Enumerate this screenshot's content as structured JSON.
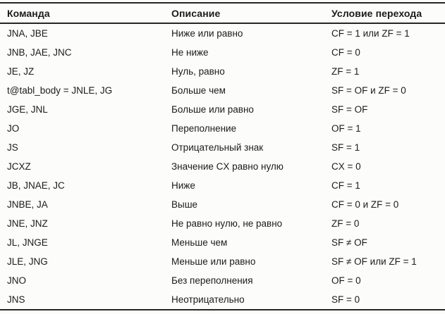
{
  "colors": {
    "background": "#fcfcfb",
    "text": "#1b1b1b",
    "rule": "#262626"
  },
  "table": {
    "columns": [
      {
        "key": "command",
        "label": "Команда"
      },
      {
        "key": "description",
        "label": "Описание"
      },
      {
        "key": "condition",
        "label": "Условие перехода"
      }
    ],
    "rows": [
      {
        "command": "JNA, JBE",
        "description": "Ниже или равно",
        "condition": "CF = 1 или ZF = 1"
      },
      {
        "command": "JNB, JAE, JNC",
        "description": "Не ниже",
        "condition": "CF = 0"
      },
      {
        "command": "JE, JZ",
        "description": "Нуль, равно",
        "condition": "ZF = 1"
      },
      {
        "command": "t@tabl_body = JNLE, JG",
        "description": "Больше чем",
        "condition": "SF = OF и ZF = 0"
      },
      {
        "command": "JGE, JNL",
        "description": "Больше или равно",
        "condition": "SF = OF"
      },
      {
        "command": "JO",
        "description": "Переполнение",
        "condition": "OF = 1"
      },
      {
        "command": "JS",
        "description": "Отрицательный знак",
        "condition": "SF = 1"
      },
      {
        "command": "JCXZ",
        "description": "Значение CX равно нулю",
        "condition": "CX = 0"
      },
      {
        "command": "JB, JNAE, JC",
        "description": "Ниже",
        "condition": "CF = 1"
      },
      {
        "command": "JNBE, JA",
        "description": "Выше",
        "condition": "CF = 0 и ZF = 0"
      },
      {
        "command": "JNE, JNZ",
        "description": "Не равно нулю, не равно",
        "condition": "ZF = 0"
      },
      {
        "command": "JL, JNGE",
        "description": "Меньше чем",
        "condition": "SF ≠ OF"
      },
      {
        "command": "JLE, JNG",
        "description": "Меньше или равно",
        "condition": "SF ≠ OF или ZF = 1"
      },
      {
        "command": "JNO",
        "description": "Без переполнения",
        "condition": "OF = 0"
      },
      {
        "command": "JNS",
        "description": "Неотрицательно",
        "condition": "SF = 0"
      }
    ]
  }
}
